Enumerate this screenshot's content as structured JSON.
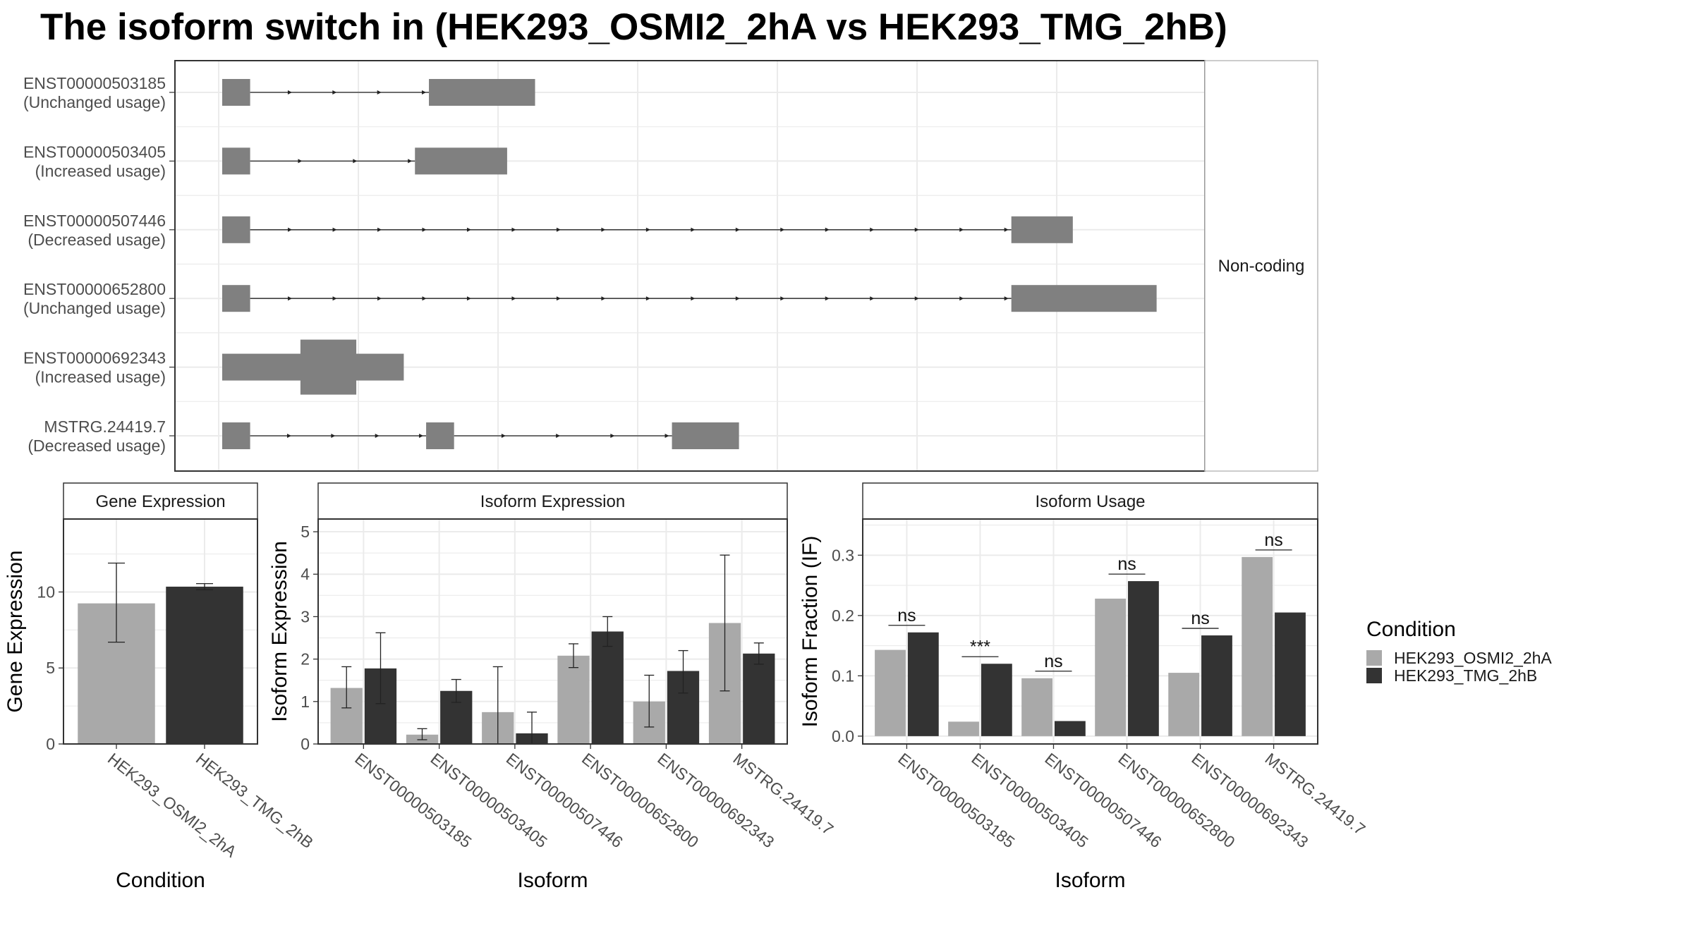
{
  "title": "The isoform switch in  (HEK293_OSMI2_2hA vs HEK293_TMG_2hB)",
  "colors": {
    "condition_a": "#A9A9A9",
    "condition_b": "#333333",
    "exon": "#808080",
    "grid": "#EBEBEB",
    "panel_border": "#333333",
    "strip_fill": "#FFFFFF",
    "strip_border": "#333333",
    "axis_text": "#4D4D4D"
  },
  "chart_data": [
    {
      "type": "gene-structure",
      "panel_label": "Non-coding",
      "transcripts": [
        {
          "id": "ENST00000503185",
          "usage": "(Unchanged usage)",
          "exons": [
            [
              0,
              20
            ],
            [
              148,
              224
            ]
          ],
          "thick_exons": []
        },
        {
          "id": "ENST00000503405",
          "usage": "(Increased usage)",
          "exons": [
            [
              0,
              20
            ],
            [
              138,
              204
            ]
          ],
          "thick_exons": []
        },
        {
          "id": "ENST00000507446",
          "usage": "(Decreased usage)",
          "exons": [
            [
              0,
              20
            ],
            [
              565,
              609
            ]
          ],
          "thick_exons": []
        },
        {
          "id": "ENST00000652800",
          "usage": "(Unchanged usage)",
          "exons": [
            [
              0,
              20
            ],
            [
              565,
              669
            ]
          ],
          "thick_exons": []
        },
        {
          "id": "ENST00000692343",
          "usage": "(Increased usage)",
          "exons": [
            [
              0,
              130
            ]
          ],
          "thick_exons": [
            [
              56,
              96
            ]
          ]
        },
        {
          "id": "MSTRG.24419.7",
          "usage": "(Decreased usage)",
          "exons": [
            [
              0,
              20
            ],
            [
              146,
              166
            ],
            [
              322,
              370
            ]
          ],
          "thick_exons": []
        }
      ]
    },
    {
      "type": "bar",
      "strip": "Gene Expression",
      "xlabel": "Condition",
      "ylabel": "Gene Expression",
      "ylim": [
        0,
        14.8
      ],
      "yticks": [
        0,
        5,
        10
      ],
      "categories": [
        "HEK293_OSMI2_2hA",
        "HEK293_TMG_2hB"
      ],
      "values": [
        9.25,
        10.35
      ],
      "error_low": [
        6.7,
        10.15
      ],
      "error_high": [
        11.9,
        10.55
      ]
    },
    {
      "type": "bar",
      "strip": "Isoform Expression",
      "xlabel": "Isoform",
      "ylabel": "Isoform Expression",
      "ylim": [
        0,
        5.3
      ],
      "yticks": [
        0,
        1,
        2,
        3,
        4,
        5
      ],
      "categories": [
        "ENST00000503185",
        "ENST00000503405",
        "ENST00000507446",
        "ENST00000652800",
        "ENST00000692343",
        "MSTRG.24419.7"
      ],
      "series": [
        {
          "name": "HEK293_OSMI2_2hA",
          "values": [
            1.32,
            0.22,
            0.75,
            2.08,
            1.0,
            2.85
          ],
          "error_low": [
            0.85,
            0.1,
            0.0,
            1.8,
            0.4,
            1.25
          ],
          "error_high": [
            1.82,
            0.36,
            1.82,
            2.36,
            1.62,
            4.45
          ]
        },
        {
          "name": "HEK293_TMG_2hB",
          "values": [
            1.78,
            1.25,
            0.25,
            2.65,
            1.72,
            2.13
          ],
          "error_low": [
            0.95,
            0.98,
            0.0,
            2.3,
            1.2,
            1.88
          ],
          "error_high": [
            2.62,
            1.52,
            0.75,
            3.0,
            2.2,
            2.38
          ]
        }
      ]
    },
    {
      "type": "bar",
      "strip": "Isoform Usage",
      "xlabel": "Isoform",
      "ylabel": "Isoform Fraction (IF)",
      "ylim": [
        -0.013,
        0.36
      ],
      "yticks": [
        0.0,
        0.1,
        0.2,
        0.3
      ],
      "ytick_labels": [
        "0.0",
        "0.1",
        "0.2",
        "0.3"
      ],
      "categories": [
        "ENST00000503185",
        "ENST00000503405",
        "ENST00000507446",
        "ENST00000652800",
        "ENST00000692343",
        "MSTRG.24419.7"
      ],
      "series": [
        {
          "name": "HEK293_OSMI2_2hA",
          "values": [
            0.143,
            0.024,
            0.096,
            0.228,
            0.105,
            0.297
          ]
        },
        {
          "name": "HEK293_TMG_2hB",
          "values": [
            0.172,
            0.12,
            0.025,
            0.257,
            0.167,
            0.205
          ]
        }
      ],
      "significance": [
        "ns",
        "***",
        "ns",
        "ns",
        "ns",
        "ns"
      ]
    }
  ],
  "legend": {
    "title": "Condition",
    "placement": "right",
    "entries": [
      "HEK293_OSMI2_2hA",
      "HEK293_TMG_2hB"
    ]
  }
}
